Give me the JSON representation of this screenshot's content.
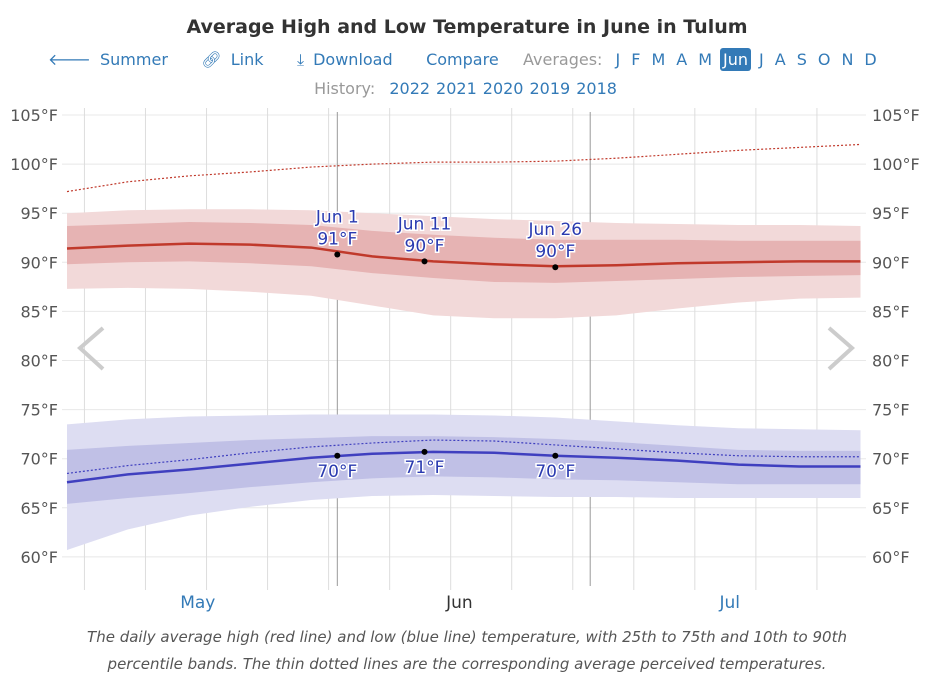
{
  "title": "Average High and Low Temperature in June in Tulum",
  "nav": {
    "summer": "Summer",
    "link": "Link",
    "download": "Download",
    "compare": "Compare",
    "averages_label": "Averages:",
    "months": [
      "J",
      "F",
      "M",
      "A",
      "M",
      "Jun",
      "J",
      "A",
      "S",
      "O",
      "N",
      "D"
    ],
    "selected_month": "Jun"
  },
  "history": {
    "label": "History:",
    "years": [
      "2022",
      "2021",
      "2020",
      "2019",
      "2018"
    ]
  },
  "caption_lines": [
    "The daily average high (red line) and low (blue line) temperature, with 25th to 75th and 10th to 90th",
    "percentile bands. The thin dotted lines are the corresponding average perceived temperatures."
  ],
  "colors": {
    "high": "#c0392b",
    "high_band_inner": "#e6b3b3",
    "high_band_outer": "#f2d9d9",
    "low": "#3f3fbf",
    "low_band_inner": "#c0c0e6",
    "low_band_outer": "#ddddf2",
    "link": "#337ab7"
  },
  "chart_data": {
    "type": "line",
    "title": "Average High and Low Temperature in June in Tulum",
    "x": [
      "May 1",
      "May 8",
      "May 15",
      "May 22",
      "May 29",
      "Jun 5",
      "Jun 12",
      "Jun 19",
      "Jun 26",
      "Jul 3",
      "Jul 10",
      "Jul 17",
      "Jul 24",
      "Jul 31"
    ],
    "x_tick_labels": [
      "May",
      "Jun",
      "Jul"
    ],
    "y_tick_labels": [
      "60°F",
      "65°F",
      "70°F",
      "75°F",
      "80°F",
      "85°F",
      "90°F",
      "95°F",
      "100°F",
      "105°F"
    ],
    "ylim": [
      60,
      105
    ],
    "grid": true,
    "series": [
      {
        "key": "high",
        "values": [
          91.4,
          91.7,
          91.9,
          91.8,
          91.5,
          90.6,
          90.1,
          89.8,
          89.6,
          89.7,
          89.9,
          90.0,
          90.1,
          90.1
        ]
      },
      {
        "key": "high_p25",
        "values": [
          89.8,
          90.0,
          90.1,
          89.9,
          89.6,
          88.9,
          88.4,
          88.0,
          87.9,
          88.1,
          88.3,
          88.5,
          88.6,
          88.7
        ]
      },
      {
        "key": "high_p75",
        "values": [
          93.7,
          93.9,
          94.1,
          94.0,
          93.8,
          93.2,
          92.8,
          92.5,
          92.3,
          92.3,
          92.3,
          92.2,
          92.2,
          92.2
        ]
      },
      {
        "key": "high_p10",
        "values": [
          87.3,
          87.4,
          87.3,
          87.0,
          86.6,
          85.6,
          84.6,
          84.3,
          84.3,
          84.6,
          85.3,
          85.9,
          86.3,
          86.4
        ]
      },
      {
        "key": "high_p90",
        "values": [
          95.0,
          95.3,
          95.4,
          95.4,
          95.3,
          95.0,
          94.7,
          94.4,
          94.2,
          94.0,
          93.9,
          93.8,
          93.8,
          93.7
        ]
      },
      {
        "key": "high_perceived",
        "values": [
          97.2,
          98.2,
          98.8,
          99.2,
          99.7,
          100.0,
          100.2,
          100.2,
          100.3,
          100.6,
          101.0,
          101.4,
          101.7,
          102.0
        ]
      },
      {
        "key": "low",
        "values": [
          67.6,
          68.4,
          68.9,
          69.5,
          70.1,
          70.5,
          70.7,
          70.6,
          70.3,
          70.1,
          69.8,
          69.4,
          69.2,
          69.2
        ]
      },
      {
        "key": "low_p25",
        "values": [
          65.4,
          66.0,
          66.5,
          67.1,
          67.6,
          68.0,
          68.2,
          68.1,
          67.9,
          67.8,
          67.6,
          67.4,
          67.4,
          67.4
        ]
      },
      {
        "key": "low_p75",
        "values": [
          70.9,
          71.3,
          71.6,
          71.9,
          72.1,
          72.3,
          72.3,
          72.2,
          72.0,
          71.7,
          71.3,
          70.9,
          70.8,
          70.8
        ]
      },
      {
        "key": "low_p10",
        "values": [
          60.7,
          62.8,
          64.2,
          65.1,
          65.8,
          66.2,
          66.3,
          66.2,
          66.1,
          66.1,
          66.0,
          66.0,
          66.0,
          66.0
        ]
      },
      {
        "key": "low_p90",
        "values": [
          73.5,
          74.0,
          74.3,
          74.4,
          74.5,
          74.5,
          74.5,
          74.4,
          74.2,
          73.8,
          73.4,
          73.1,
          73.0,
          72.9
        ]
      },
      {
        "key": "low_perceived",
        "values": [
          68.5,
          69.3,
          69.9,
          70.6,
          71.2,
          71.6,
          71.9,
          71.8,
          71.4,
          71.0,
          70.6,
          70.3,
          70.2,
          70.2
        ]
      }
    ],
    "annotations": [
      {
        "date": "Jun 1",
        "label_date": "Jun 1",
        "high": "91°F",
        "low": "70°F",
        "high_value": 90.8,
        "low_value": 70.3
      },
      {
        "date": "Jun 11",
        "label_date": "Jun 11",
        "high": "90°F",
        "low": "71°F",
        "high_value": 90.1,
        "low_value": 70.7
      },
      {
        "date": "Jun 26",
        "label_date": "Jun 26",
        "high": "90°F",
        "low": "70°F",
        "high_value": 89.5,
        "low_value": 70.3
      }
    ]
  }
}
